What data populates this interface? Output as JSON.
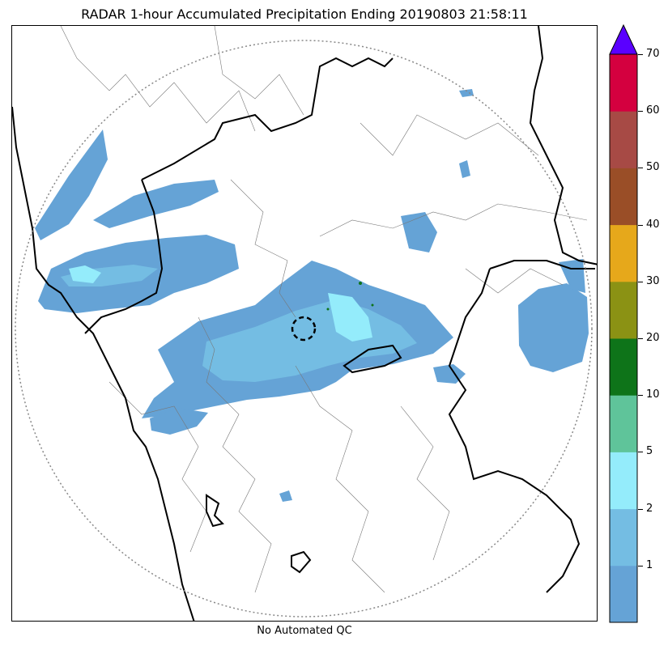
{
  "title": "RADAR 1-hour Accumulated Precipitation Ending 20190803 21:58:11",
  "subtitle": "No Automated QC",
  "colorbar": {
    "tick_labels": [
      "1",
      "2",
      "5",
      "10",
      "20",
      "30",
      "40",
      "50",
      "60",
      "70"
    ],
    "colors": [
      "#65a3d6",
      "#74bde3",
      "#94ecfb",
      "#5fc49a",
      "#0e7419",
      "#8b9214",
      "#e6a81b",
      "#9a4e27",
      "#a74a45",
      "#d4003f"
    ],
    "extend_color": "#5a00ff"
  },
  "colors": {
    "rain_light": "#65a3d6",
    "rain_moderate": "#74bde3",
    "rain_heavy": "#94ecfb",
    "rain_green": "#0e7419",
    "border": "#000000",
    "district": "#777777",
    "range_ring": "#888888"
  }
}
